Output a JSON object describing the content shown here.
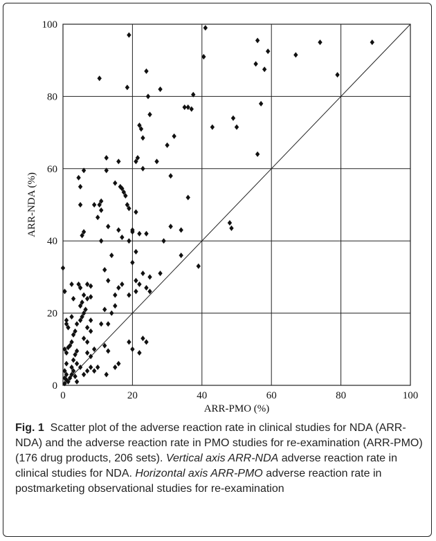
{
  "chart_data": {
    "type": "scatter",
    "xlabel": "ARR-PMO (%)",
    "ylabel": "ARR-NDA (%)",
    "xlim": [
      0,
      100
    ],
    "ylim": [
      0,
      100
    ],
    "xticks": [
      "0",
      "20",
      "40",
      "60",
      "80",
      "100"
    ],
    "yticks": [
      "0",
      "20",
      "40",
      "60",
      "80",
      "100"
    ],
    "grid": true,
    "reference_line": "y = x",
    "marker": "diamond",
    "points": [
      [
        0,
        32.5
      ],
      [
        0.5,
        26
      ],
      [
        1,
        18
      ],
      [
        1,
        17
      ],
      [
        1.5,
        16
      ],
      [
        0.5,
        10
      ],
      [
        1,
        9
      ],
      [
        1.5,
        10.5
      ],
      [
        2,
        11
      ],
      [
        1,
        6
      ],
      [
        0.5,
        4
      ],
      [
        1,
        3
      ],
      [
        0.5,
        2
      ],
      [
        1,
        1.5
      ],
      [
        2,
        2
      ],
      [
        1.5,
        1
      ],
      [
        0.5,
        0.5
      ],
      [
        2.5,
        3
      ],
      [
        3,
        4
      ],
      [
        3.5,
        2.5
      ],
      [
        2.5,
        5
      ],
      [
        3,
        7
      ],
      [
        3.5,
        8.5
      ],
      [
        4,
        9.5
      ],
      [
        2.5,
        12
      ],
      [
        3,
        14
      ],
      [
        3.5,
        15
      ],
      [
        2.5,
        19
      ],
      [
        3,
        24
      ],
      [
        2.5,
        28
      ],
      [
        4.5,
        57.5
      ],
      [
        5,
        55
      ],
      [
        5,
        50
      ],
      [
        5.5,
        41.5
      ],
      [
        6,
        42.5
      ],
      [
        6,
        59.5
      ],
      [
        4,
        17
      ],
      [
        5,
        18
      ],
      [
        5.5,
        19
      ],
      [
        6,
        20
      ],
      [
        5,
        22
      ],
      [
        5.5,
        23
      ],
      [
        6,
        25
      ],
      [
        4.5,
        28
      ],
      [
        5,
        27
      ],
      [
        7,
        28
      ],
      [
        8,
        27.5
      ],
      [
        7,
        24
      ],
      [
        8,
        24.5
      ],
      [
        6.5,
        21
      ],
      [
        8,
        18
      ],
      [
        7,
        16
      ],
      [
        8,
        15
      ],
      [
        6,
        13
      ],
      [
        7,
        12
      ],
      [
        4,
        6
      ],
      [
        5,
        5
      ],
      [
        6,
        3
      ],
      [
        7,
        4
      ],
      [
        4,
        1
      ],
      [
        7,
        9
      ],
      [
        8,
        8
      ],
      [
        9,
        10
      ],
      [
        8,
        5
      ],
      [
        9,
        4
      ],
      [
        10,
        5
      ],
      [
        9,
        50
      ],
      [
        10,
        46.5
      ],
      [
        10.5,
        50
      ],
      [
        11,
        51
      ],
      [
        11,
        48.5
      ],
      [
        11,
        40
      ],
      [
        12,
        32
      ],
      [
        13,
        29
      ],
      [
        12,
        21
      ],
      [
        13,
        17
      ],
      [
        11,
        17
      ],
      [
        12,
        11
      ],
      [
        13,
        9.5
      ],
      [
        12.5,
        3
      ],
      [
        10.5,
        85
      ],
      [
        12.5,
        63
      ],
      [
        12.5,
        59.5
      ],
      [
        13,
        44
      ],
      [
        14,
        36
      ],
      [
        15,
        56
      ],
      [
        16,
        62
      ],
      [
        16.5,
        55
      ],
      [
        17,
        54.5
      ],
      [
        17.5,
        53.5
      ],
      [
        16,
        43
      ],
      [
        17,
        41
      ],
      [
        16,
        27
      ],
      [
        17,
        28
      ],
      [
        15,
        25
      ],
      [
        15,
        22
      ],
      [
        14,
        20
      ],
      [
        15,
        5
      ],
      [
        16,
        6
      ],
      [
        18,
        52.5
      ],
      [
        18.5,
        50
      ],
      [
        19,
        49
      ],
      [
        19,
        40
      ],
      [
        20,
        43
      ],
      [
        20,
        42.5
      ],
      [
        21,
        37
      ],
      [
        20,
        34
      ],
      [
        19,
        25
      ],
      [
        21,
        26
      ],
      [
        22,
        28
      ],
      [
        21,
        29
      ],
      [
        23,
        31
      ],
      [
        19,
        12
      ],
      [
        20,
        10
      ],
      [
        22,
        9
      ],
      [
        23,
        13
      ],
      [
        24,
        12
      ],
      [
        18.5,
        82.5
      ],
      [
        19,
        97
      ],
      [
        21,
        62
      ],
      [
        21.5,
        63
      ],
      [
        22,
        72
      ],
      [
        22.5,
        71
      ],
      [
        23,
        68.5
      ],
      [
        24,
        87
      ],
      [
        24.5,
        80
      ],
      [
        25,
        75
      ],
      [
        23,
        60
      ],
      [
        21,
        48
      ],
      [
        22,
        42
      ],
      [
        24,
        42
      ],
      [
        24,
        27
      ],
      [
        25,
        26
      ],
      [
        27,
        62
      ],
      [
        28,
        82
      ],
      [
        30,
        66.5
      ],
      [
        31,
        58
      ],
      [
        32,
        69
      ],
      [
        31,
        44
      ],
      [
        29,
        40
      ],
      [
        28,
        31
      ],
      [
        25,
        30
      ],
      [
        35,
        77
      ],
      [
        36,
        77
      ],
      [
        37,
        76.5
      ],
      [
        37.5,
        80.5
      ],
      [
        36,
        52
      ],
      [
        34,
        36
      ],
      [
        34,
        43
      ],
      [
        39,
        33
      ],
      [
        41,
        99
      ],
      [
        40.5,
        91
      ],
      [
        43,
        71.5
      ],
      [
        48,
        45
      ],
      [
        48.5,
        43.5
      ],
      [
        49,
        74
      ],
      [
        50,
        71.5
      ],
      [
        56,
        95.5
      ],
      [
        55.5,
        89
      ],
      [
        57,
        78
      ],
      [
        56,
        64
      ],
      [
        58,
        87.5
      ],
      [
        59,
        92.5
      ],
      [
        67,
        91.5
      ],
      [
        74,
        95
      ],
      [
        79,
        86
      ],
      [
        89,
        95
      ]
    ]
  },
  "caption": {
    "fig_label": "Fig. 1",
    "text_main": "Scatter plot of the adverse reaction rate in clinical studies for NDA (ARR-NDA) and the adverse reaction rate in PMO studies for re-examination (ARR-PMO) (176 drug products, 206 sets).",
    "vert_label": "Vertical axis ARR-NDA",
    "vert_text": "adverse reaction rate in clinical studies for NDA.",
    "horiz_label": "Horizontal axis ARR-PMO",
    "horiz_text": "adverse reaction rate in postmarketing observational studies for re-examination"
  }
}
